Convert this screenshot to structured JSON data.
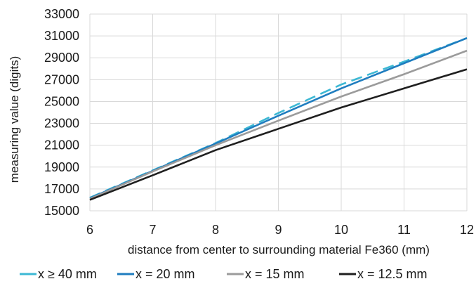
{
  "chart_data": {
    "type": "line",
    "xlabel": "distance from center to surrounding material Fe360 (mm)",
    "ylabel": "measuring value (digits)",
    "xlim": [
      6,
      12
    ],
    "ylim": [
      15000,
      33000
    ],
    "xticks": [
      "6",
      "7",
      "8",
      "9",
      "10",
      "11",
      "12"
    ],
    "yticks": [
      "15000",
      "17000",
      "19000",
      "21000",
      "23000",
      "25000",
      "27000",
      "29000",
      "31000",
      "33000"
    ],
    "grid": true,
    "legend_position": "bottom",
    "series": [
      {
        "name": "x ≥ 40 mm",
        "color": "#3cb8d4",
        "dash": true,
        "x": [
          6,
          7,
          8,
          9,
          10,
          11,
          12
        ],
        "y": [
          16200,
          18700,
          21200,
          23950,
          26550,
          28650,
          30800
        ]
      },
      {
        "name": "x = 20 mm",
        "color": "#1f7dbf",
        "dash": false,
        "x": [
          6,
          7,
          8,
          9,
          10,
          11,
          12
        ],
        "y": [
          16150,
          18650,
          21150,
          23700,
          26200,
          28500,
          30800
        ]
      },
      {
        "name": "x = 15 mm",
        "color": "#9b9b9b",
        "dash": false,
        "x": [
          6,
          7,
          8,
          9,
          10,
          11,
          12
        ],
        "y": [
          16100,
          18600,
          21000,
          23250,
          25450,
          27500,
          29650
        ]
      },
      {
        "name": "x = 12.5 mm",
        "color": "#1f1f1f",
        "dash": false,
        "x": [
          6,
          7,
          8,
          9,
          10,
          11,
          12
        ],
        "y": [
          16000,
          18250,
          20550,
          22500,
          24450,
          26200,
          27950
        ]
      }
    ]
  }
}
